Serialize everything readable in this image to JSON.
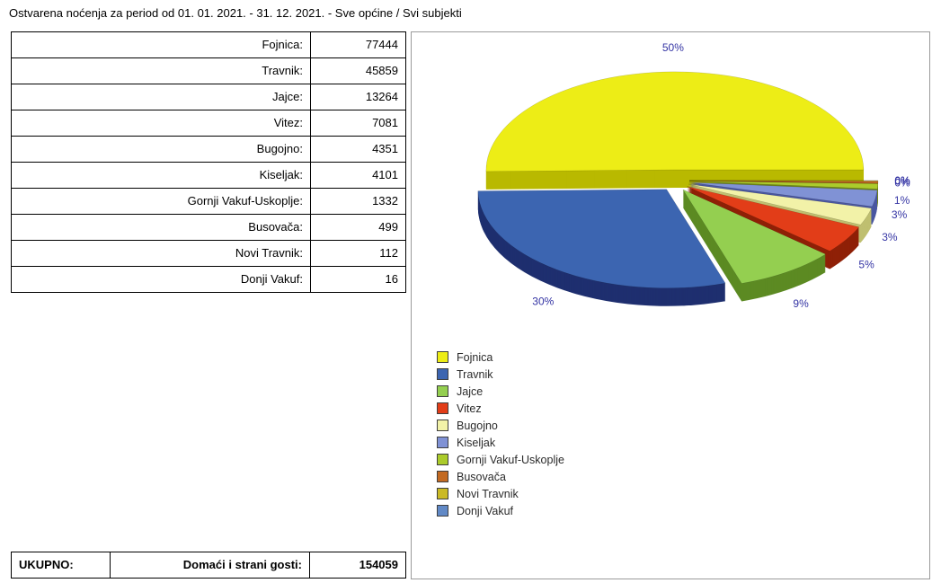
{
  "title": "Ostvarena noćenja za period od 01. 01. 2021. - 31. 12. 2021. - Sve općine / Svi subjekti",
  "table": {
    "rows": [
      {
        "label": "Fojnica:",
        "value": "77444"
      },
      {
        "label": "Travnik:",
        "value": "45859"
      },
      {
        "label": "Jajce:",
        "value": "13264"
      },
      {
        "label": "Vitez:",
        "value": "7081"
      },
      {
        "label": "Bugojno:",
        "value": "4351"
      },
      {
        "label": "Kiseljak:",
        "value": "4101"
      },
      {
        "label": "Gornji Vakuf-Uskoplje:",
        "value": "1332"
      },
      {
        "label": "Busovača:",
        "value": "499"
      },
      {
        "label": "Novi Travnik:",
        "value": "112"
      },
      {
        "label": "Donji Vakuf:",
        "value": "16"
      }
    ],
    "total": {
      "label": "UKUPNO:",
      "sublabel": "Domaći i strani gosti:",
      "value": "154059"
    }
  },
  "chart_data": {
    "type": "pie",
    "style": "3d-exploded",
    "categories": [
      "Fojnica",
      "Travnik",
      "Jajce",
      "Vitez",
      "Bugojno",
      "Kiseljak",
      "Gornji Vakuf-Uskoplje",
      "Busovača",
      "Novi Travnik",
      "Donji Vakuf"
    ],
    "values": [
      77444,
      45859,
      13264,
      7081,
      4351,
      4101,
      1332,
      499,
      112,
      16
    ],
    "total": 154059,
    "percent_labels": [
      "50%",
      "30%",
      "9%",
      "5%",
      "3%",
      "3%",
      "1%",
      "0%",
      "0%",
      "0%"
    ],
    "colors": [
      "#EDED16",
      "#3C65B1",
      "#94CF50",
      "#E23D18",
      "#F2F2A8",
      "#8092D5",
      "#ABCB2B",
      "#C36A22",
      "#CBBA25",
      "#6189C6"
    ],
    "side_colors": [
      "#B9B900",
      "#1E2F6F",
      "#5C8A23",
      "#8F2007",
      "#BFBF70",
      "#4A57A0",
      "#70871A",
      "#7F3F10",
      "#8A7B12",
      "#37598E"
    ],
    "percent_label_color": "#3434A4",
    "legend_position": "bottom-left"
  }
}
